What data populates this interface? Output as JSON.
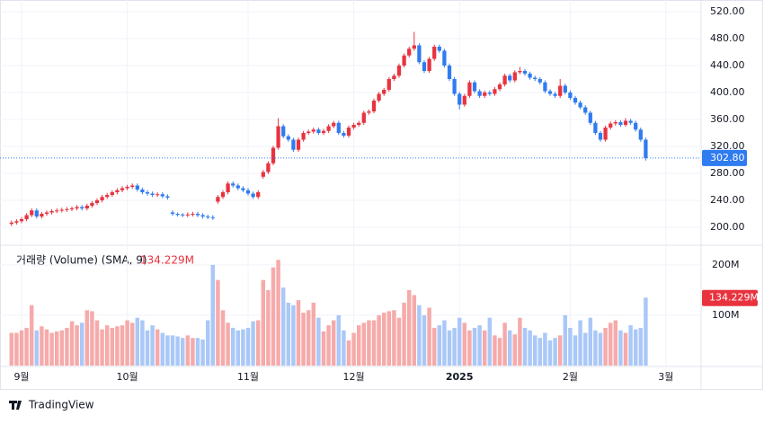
{
  "chart_data": {
    "type": "candlestick",
    "brand": "TradingView",
    "volume_title": "거래량 (Volume) (SMA, 9)",
    "volume_sma": {
      "value": 134.229,
      "label": "134.229M"
    },
    "last_label": "302.80",
    "up_color": "#e8333f",
    "down_color": "#2f7bf0",
    "up_volume_color": "#f6aaaa",
    "down_volume_color": "#aac8f7",
    "grid": true,
    "xlim": [
      -0.5,
      137
    ],
    "xticks": [
      {
        "value": 2,
        "label": "9월"
      },
      {
        "value": 23,
        "label": "10월"
      },
      {
        "value": 47,
        "label": "11월"
      },
      {
        "value": 68,
        "label": "12월"
      },
      {
        "value": 89,
        "label": "2025"
      },
      {
        "value": 111,
        "label": "2월"
      },
      {
        "value": 130,
        "label": "3월"
      }
    ],
    "ylim": [
      174.7,
      537.3
    ],
    "yticks": [
      {
        "value": 200,
        "label": "200.00"
      },
      {
        "value": 240,
        "label": "240.00"
      },
      {
        "value": 280,
        "label": "280.00"
      },
      {
        "value": 320,
        "label": "320.00"
      },
      {
        "value": 360,
        "label": "360.00"
      },
      {
        "value": 400,
        "label": "400.00"
      },
      {
        "value": 440,
        "label": "440.00"
      },
      {
        "value": 480,
        "label": "480.00"
      },
      {
        "value": 520,
        "label": "520.00"
      }
    ],
    "y2lim": [
      0,
      239
    ],
    "y2ticks": [
      {
        "value": 100,
        "label": "100M"
      },
      {
        "value": 200,
        "label": "200M"
      }
    ],
    "candles": [
      [
        205,
        210,
        202,
        207
      ],
      [
        207,
        212,
        204,
        209
      ],
      [
        209,
        215,
        206,
        212
      ],
      [
        212,
        221,
        209,
        218
      ],
      [
        218,
        228,
        215,
        225
      ],
      [
        225,
        228,
        213,
        216
      ],
      [
        216,
        223,
        213,
        220
      ],
      [
        220,
        225,
        217,
        222
      ],
      [
        222,
        227,
        219,
        224
      ],
      [
        224,
        228,
        221,
        225
      ],
      [
        225,
        229,
        222,
        226
      ],
      [
        226,
        230,
        223,
        227
      ],
      [
        227,
        231,
        224,
        228
      ],
      [
        228,
        233,
        225,
        230
      ],
      [
        230,
        233,
        225,
        228
      ],
      [
        228,
        235,
        225,
        232
      ],
      [
        232,
        239,
        229,
        236
      ],
      [
        236,
        243,
        233,
        240
      ],
      [
        240,
        248,
        237,
        245
      ],
      [
        245,
        251,
        242,
        248
      ],
      [
        248,
        255,
        245,
        252
      ],
      [
        252,
        258,
        249,
        255
      ],
      [
        255,
        261,
        252,
        258
      ],
      [
        258,
        263,
        255,
        260
      ],
      [
        260,
        265,
        257,
        262
      ],
      [
        262,
        265,
        253,
        256
      ],
      [
        256,
        259,
        249,
        252
      ],
      [
        252,
        255,
        247,
        250
      ],
      [
        250,
        253,
        245,
        248
      ],
      [
        248,
        252,
        245,
        249
      ],
      [
        249,
        252,
        243,
        246
      ],
      [
        246,
        249,
        241,
        244
      ],
      [
        222,
        225,
        217,
        220
      ],
      [
        220,
        222,
        216,
        219
      ],
      [
        219,
        221,
        215,
        218
      ],
      [
        218,
        222,
        215,
        219
      ],
      [
        219,
        223,
        216,
        220
      ],
      [
        220,
        223,
        215,
        218
      ],
      [
        218,
        221,
        213,
        216
      ],
      [
        216,
        219,
        212,
        215
      ],
      [
        215,
        218,
        211,
        214
      ],
      [
        238,
        248,
        235,
        245
      ],
      [
        245,
        255,
        242,
        252
      ],
      [
        252,
        268,
        249,
        265
      ],
      [
        265,
        268,
        259,
        262
      ],
      [
        262,
        265,
        255,
        258
      ],
      [
        258,
        261,
        252,
        255
      ],
      [
        255,
        258,
        247,
        250
      ],
      [
        250,
        253,
        242,
        245
      ],
      [
        245,
        255,
        242,
        252
      ],
      [
        275,
        285,
        272,
        282
      ],
      [
        282,
        298,
        279,
        295
      ],
      [
        295,
        321,
        292,
        318
      ],
      [
        318,
        362,
        315,
        350
      ],
      [
        350,
        353,
        332,
        335
      ],
      [
        335,
        338,
        327,
        330
      ],
      [
        330,
        333,
        312,
        315
      ],
      [
        315,
        333,
        312,
        330
      ],
      [
        330,
        343,
        327,
        340
      ],
      [
        340,
        345,
        337,
        342
      ],
      [
        342,
        348,
        339,
        345
      ],
      [
        345,
        348,
        337,
        340
      ],
      [
        340,
        346,
        337,
        343
      ],
      [
        343,
        353,
        340,
        350
      ],
      [
        350,
        358,
        347,
        355
      ],
      [
        355,
        358,
        337,
        340
      ],
      [
        340,
        343,
        333,
        336
      ],
      [
        336,
        351,
        333,
        348
      ],
      [
        348,
        355,
        345,
        352
      ],
      [
        352,
        358,
        349,
        355
      ],
      [
        355,
        373,
        352,
        370
      ],
      [
        370,
        375,
        367,
        372
      ],
      [
        372,
        391,
        369,
        388
      ],
      [
        388,
        401,
        385,
        398
      ],
      [
        398,
        407,
        395,
        404
      ],
      [
        404,
        423,
        401,
        420
      ],
      [
        420,
        428,
        417,
        425
      ],
      [
        425,
        443,
        422,
        440
      ],
      [
        440,
        458,
        437,
        455
      ],
      [
        455,
        468,
        452,
        465
      ],
      [
        465,
        490,
        462,
        470
      ],
      [
        470,
        473,
        442,
        445
      ],
      [
        445,
        448,
        429,
        432
      ],
      [
        432,
        453,
        429,
        450
      ],
      [
        450,
        471,
        447,
        468
      ],
      [
        468,
        471,
        459,
        462
      ],
      [
        462,
        465,
        437,
        440
      ],
      [
        440,
        443,
        417,
        420
      ],
      [
        420,
        423,
        395,
        398
      ],
      [
        398,
        401,
        375,
        382
      ],
      [
        382,
        398,
        379,
        395
      ],
      [
        395,
        418,
        392,
        415
      ],
      [
        415,
        418,
        399,
        402
      ],
      [
        402,
        405,
        392,
        395
      ],
      [
        395,
        403,
        392,
        400
      ],
      [
        400,
        403,
        395,
        398
      ],
      [
        398,
        408,
        395,
        405
      ],
      [
        405,
        415,
        402,
        412
      ],
      [
        412,
        428,
        409,
        425
      ],
      [
        425,
        428,
        415,
        418
      ],
      [
        418,
        433,
        415,
        430
      ],
      [
        430,
        438,
        427,
        432
      ],
      [
        432,
        435,
        425,
        428
      ],
      [
        428,
        431,
        419,
        422
      ],
      [
        422,
        425,
        417,
        420
      ],
      [
        420,
        423,
        412,
        415
      ],
      [
        415,
        418,
        399,
        402
      ],
      [
        402,
        405,
        395,
        398
      ],
      [
        398,
        401,
        392,
        395
      ],
      [
        395,
        420,
        392,
        410
      ],
      [
        410,
        413,
        397,
        400
      ],
      [
        400,
        403,
        389,
        392
      ],
      [
        392,
        395,
        382,
        385
      ],
      [
        385,
        388,
        375,
        378
      ],
      [
        378,
        381,
        367,
        370
      ],
      [
        370,
        373,
        352,
        355
      ],
      [
        355,
        358,
        337,
        340
      ],
      [
        340,
        343,
        327,
        330
      ],
      [
        330,
        351,
        327,
        348
      ],
      [
        348,
        357,
        345,
        354
      ],
      [
        354,
        359,
        351,
        356
      ],
      [
        356,
        359,
        349,
        352
      ],
      [
        352,
        362,
        349,
        358
      ],
      [
        358,
        361,
        352,
        355
      ],
      [
        355,
        358,
        342,
        345
      ],
      [
        345,
        348,
        327,
        330
      ],
      [
        330,
        333,
        299,
        302.8
      ]
    ],
    "volume": [
      65,
      65,
      70,
      75,
      120,
      70,
      78,
      72,
      65,
      68,
      70,
      75,
      88,
      80,
      85,
      110,
      108,
      90,
      72,
      80,
      75,
      78,
      80,
      90,
      85,
      95,
      90,
      70,
      80,
      72,
      65,
      60,
      60,
      58,
      55,
      60,
      55,
      55,
      52,
      90,
      200,
      170,
      110,
      85,
      75,
      70,
      72,
      75,
      88,
      90,
      170,
      150,
      195,
      210,
      155,
      125,
      120,
      130,
      105,
      110,
      125,
      95,
      68,
      80,
      90,
      100,
      70,
      50,
      65,
      80,
      85,
      90,
      90,
      100,
      105,
      108,
      110,
      95,
      125,
      150,
      140,
      120,
      100,
      115,
      75,
      80,
      90,
      70,
      75,
      95,
      85,
      70,
      75,
      80,
      70,
      95,
      60,
      55,
      85,
      70,
      62,
      95,
      75,
      70,
      60,
      55,
      65,
      50,
      55,
      60,
      100,
      75,
      60,
      90,
      65,
      95,
      70,
      65,
      75,
      85,
      90,
      70,
      65,
      80,
      72,
      75,
      135
    ]
  }
}
